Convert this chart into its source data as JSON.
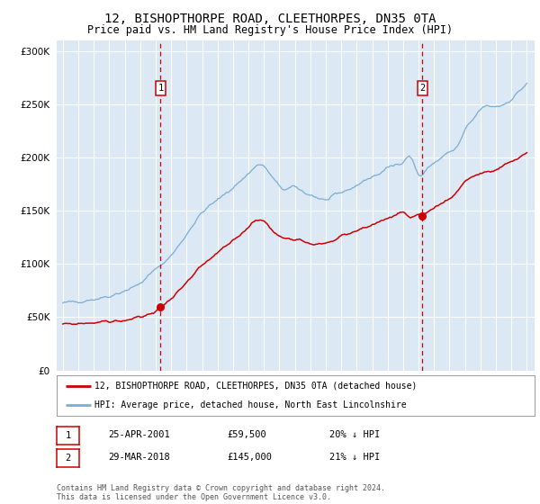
{
  "title": "12, BISHOPTHORPE ROAD, CLEETHORPES, DN35 0TA",
  "subtitle": "Price paid vs. HM Land Registry's House Price Index (HPI)",
  "title_fontsize": 10,
  "subtitle_fontsize": 8.5,
  "background_color": "#ffffff",
  "plot_bg_color": "#dce9f5",
  "grid_color": "#ffffff",
  "red_line_color": "#cc0000",
  "blue_line_color": "#7aadd4",
  "sale1_x": 2001.32,
  "sale1_price": 59500,
  "sale2_x": 2018.24,
  "sale2_price": 145000,
  "vline_color": "#cc0000",
  "legend_line1": "12, BISHOPTHORPE ROAD, CLEETHORPES, DN35 0TA (detached house)",
  "legend_line2": "HPI: Average price, detached house, North East Lincolnshire",
  "note1_label": "1",
  "note1_date": "25-APR-2001",
  "note1_price": "£59,500",
  "note1_hpi": "20% ↓ HPI",
  "note2_label": "2",
  "note2_date": "29-MAR-2018",
  "note2_price": "£145,000",
  "note2_hpi": "21% ↓ HPI",
  "footer": "Contains HM Land Registry data © Crown copyright and database right 2024.\nThis data is licensed under the Open Government Licence v3.0.",
  "ylim": [
    0,
    310000
  ],
  "yticks": [
    0,
    50000,
    100000,
    150000,
    200000,
    250000,
    300000
  ],
  "xlim_start": 1994.6,
  "xlim_end": 2025.5,
  "xticks": [
    1995,
    1996,
    1997,
    1998,
    1999,
    2000,
    2001,
    2002,
    2003,
    2004,
    2005,
    2006,
    2007,
    2008,
    2009,
    2010,
    2011,
    2012,
    2013,
    2014,
    2015,
    2016,
    2017,
    2018,
    2019,
    2020,
    2021,
    2022,
    2023,
    2024,
    2025
  ],
  "hpi_anchors_x": [
    1995.0,
    1996.0,
    1997.0,
    1998.0,
    1999.0,
    2000.0,
    2001.0,
    2002.0,
    2003.0,
    2004.0,
    2005.0,
    2006.0,
    2007.0,
    2007.8,
    2008.5,
    2009.0,
    2009.5,
    2010.0,
    2010.5,
    2011.0,
    2011.5,
    2012.0,
    2012.5,
    2013.0,
    2013.5,
    2014.0,
    2014.5,
    2015.0,
    2015.5,
    2016.0,
    2016.5,
    2017.0,
    2017.5,
    2018.0,
    2018.5,
    2019.0,
    2019.5,
    2020.0,
    2020.5,
    2021.0,
    2021.5,
    2022.0,
    2022.5,
    2023.0,
    2023.5,
    2024.0,
    2024.5,
    2025.0
  ],
  "hpi_anchors_y": [
    63000,
    65000,
    67000,
    70000,
    75000,
    82000,
    95000,
    108000,
    128000,
    148000,
    160000,
    172000,
    185000,
    193000,
    182000,
    173000,
    170000,
    172000,
    168000,
    165000,
    162000,
    160000,
    163000,
    167000,
    170000,
    174000,
    178000,
    182000,
    185000,
    190000,
    193000,
    197000,
    200000,
    184000,
    188000,
    195000,
    200000,
    205000,
    210000,
    225000,
    235000,
    245000,
    248000,
    248000,
    250000,
    255000,
    262000,
    270000
  ],
  "red_anchors_x": [
    1995.0,
    1996.0,
    1997.0,
    1998.0,
    1999.0,
    2000.0,
    2001.0,
    2001.32,
    2002.0,
    2003.0,
    2004.0,
    2005.0,
    2006.0,
    2007.0,
    2007.8,
    2008.5,
    2009.0,
    2009.5,
    2010.0,
    2010.5,
    2011.0,
    2011.5,
    2012.0,
    2012.5,
    2013.0,
    2013.5,
    2014.0,
    2014.5,
    2015.0,
    2015.5,
    2016.0,
    2016.5,
    2017.0,
    2017.5,
    2018.0,
    2018.24,
    2018.5,
    2019.0,
    2019.5,
    2020.0,
    2020.5,
    2021.0,
    2021.5,
    2022.0,
    2022.5,
    2023.0,
    2023.5,
    2024.0,
    2024.5,
    2025.0
  ],
  "red_anchors_y": [
    43000,
    44000,
    45000,
    46000,
    47000,
    50000,
    56000,
    59500,
    68000,
    82000,
    98000,
    110000,
    122000,
    135000,
    142000,
    132000,
    126000,
    124000,
    124000,
    122000,
    120000,
    118000,
    120000,
    122000,
    126000,
    128000,
    131000,
    134000,
    137000,
    140000,
    143000,
    146000,
    148000,
    143000,
    145000,
    145000,
    148000,
    153000,
    157000,
    162000,
    168000,
    178000,
    182000,
    185000,
    186000,
    188000,
    192000,
    196000,
    200000,
    205000
  ]
}
